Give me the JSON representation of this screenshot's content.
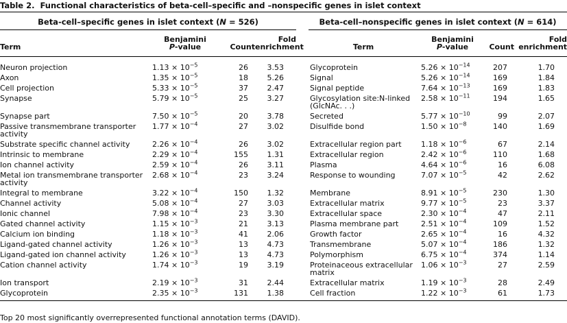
{
  "caption": {
    "label": "Table 2.",
    "text": "Functional characteristics of beta-cell–specific and –nonspecific genes in islet context"
  },
  "columns": {
    "term": "Term",
    "p_line1": "Benjamini",
    "p_italic": "P",
    "p_rest": "-value",
    "count": "Count",
    "fold_line1": "Fold",
    "fold_line2": "enrichment"
  },
  "groups": [
    {
      "title": [
        "Beta-cell–specific genes in islet context (",
        "N",
        " = 526)"
      ],
      "rows": [
        [
          "Neuron projection",
          "1.13 × 10",
          "−5",
          "26",
          "3.53"
        ],
        [
          "Axon",
          "1.35 × 10",
          "−5",
          "18",
          "5.26"
        ],
        [
          "Cell projection",
          "5.33 × 10",
          "−5",
          "37",
          "2.47"
        ],
        [
          "Synapse",
          "5.79 × 10",
          "−5",
          "25",
          "3.27"
        ],
        [
          "Synapse part",
          "7.50 × 10",
          "−5",
          "20",
          "3.78"
        ],
        [
          "Passive transmembrane transporter activity",
          "1.77 × 10",
          "−4",
          "27",
          "3.02"
        ],
        [
          "Substrate specific channel activity",
          "2.26 × 10",
          "−4",
          "26",
          "3.02"
        ],
        [
          "Intrinsic to membrane",
          "2.29 × 10",
          "−4",
          "155",
          "1.31"
        ],
        [
          "Ion channel activity",
          "2.59 × 10",
          "−4",
          "26",
          "3.11"
        ],
        [
          "Metal ion transmembrane transporter activity",
          "2.68 × 10",
          "−4",
          "23",
          "3.24"
        ],
        [
          "Integral to membrane",
          "3.22 × 10",
          "−4",
          "150",
          "1.32"
        ],
        [
          "Channel activity",
          "5.08 × 10",
          "−4",
          "27",
          "3.03"
        ],
        [
          "Ionic channel",
          "7.98 × 10",
          "−4",
          "23",
          "3.30"
        ],
        [
          "Gated channel activity",
          "1.15 × 10",
          "−3",
          "21",
          "3.13"
        ],
        [
          "Calcium ion binding",
          "1.18 × 10",
          "−3",
          "41",
          "2.06"
        ],
        [
          "Ligand-gated channel activity",
          "1.26 × 10",
          "−3",
          "13",
          "4.73"
        ],
        [
          "Ligand-gated ion channel activity",
          "1.26 × 10",
          "−3",
          "13",
          "4.73"
        ],
        [
          "Cation channel activity",
          "1.74 × 10",
          "−3",
          "19",
          "3.19"
        ],
        [
          "Ion transport",
          "2.19 × 10",
          "−3",
          "31",
          "2.44"
        ],
        [
          "Glycoprotein",
          "2.35 × 10",
          "−3",
          "131",
          "1.38"
        ]
      ]
    },
    {
      "title": [
        "Beta-cell–nonspecific genes in islet context (",
        "N",
        " = 614)"
      ],
      "rows": [
        [
          "Glycoprotein",
          "5.26 × 10",
          "−14",
          "207",
          "1.70"
        ],
        [
          "Signal",
          "5.26 × 10",
          "−14",
          "169",
          "1.84"
        ],
        [
          "Signal peptide",
          "7.64 × 10",
          "−13",
          "169",
          "1.83"
        ],
        [
          "Glycosylation site:N-linked (GlcNAc. . .)",
          "2.58 × 10",
          "−11",
          "194",
          "1.65"
        ],
        [
          "Secreted",
          "5.77 × 10",
          "−10",
          "99",
          "2.07"
        ],
        [
          "Disulfide bond",
          "1.50 × 10",
          "−8",
          "140",
          "1.69"
        ],
        [
          "Extracellular region part",
          "1.18 × 10",
          "−6",
          "67",
          "2.14"
        ],
        [
          "Extracellular region",
          "2.42 × 10",
          "−6",
          "110",
          "1.68"
        ],
        [
          "Plasma",
          "4.64 × 10",
          "−6",
          "16",
          "6.08"
        ],
        [
          "Response to wounding",
          "7.07 × 10",
          "−5",
          "42",
          "2.62"
        ],
        [
          "Membrane",
          "8.91 × 10",
          "−5",
          "230",
          "1.30"
        ],
        [
          "Extracellular matrix",
          "9.77 × 10",
          "−5",
          "23",
          "3.37"
        ],
        [
          "Extracellular space",
          "2.30 × 10",
          "−4",
          "47",
          "2.11"
        ],
        [
          "Plasma membrane part",
          "2.51 × 10",
          "−4",
          "109",
          "1.52"
        ],
        [
          "Growth factor",
          "2.65 × 10",
          "−4",
          "16",
          "4.32"
        ],
        [
          "Transmembrane",
          "5.07 × 10",
          "−4",
          "186",
          "1.32"
        ],
        [
          "Polymorphism",
          "6.75 × 10",
          "−4",
          "374",
          "1.14"
        ],
        [
          "Proteinaceous extracellular matrix",
          "1.06 × 10",
          "−3",
          "27",
          "2.59"
        ],
        [
          "Extracellular matrix",
          "1.19 × 10",
          "−3",
          "28",
          "2.49"
        ],
        [
          "Cell fraction",
          "1.22 × 10",
          "−3",
          "61",
          "1.73"
        ]
      ]
    }
  ],
  "footnote": "Top 20 most significantly overrepresented functional annotation terms (DAVID)."
}
